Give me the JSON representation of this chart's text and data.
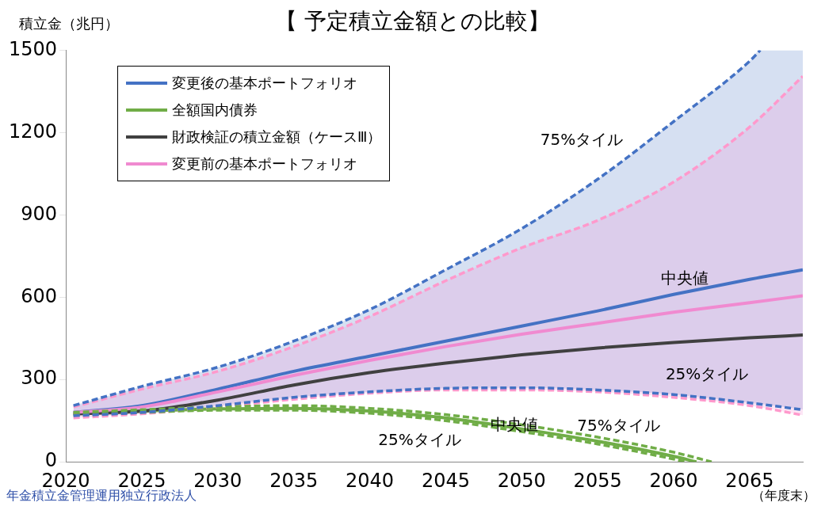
{
  "chart_data": {
    "type": "line",
    "title": "【 予定積立金額との比較】",
    "ylabel": "積立金（兆円）",
    "xlabel": "（年度末）",
    "xlim": [
      2020,
      2068.5
    ],
    "xticks": [
      2020,
      2025,
      2030,
      2035,
      2040,
      2045,
      2050,
      2055,
      2060,
      2065
    ],
    "ylim": [
      0,
      1500
    ],
    "yticks": [
      0,
      300,
      600,
      900,
      1200,
      1500
    ],
    "grid": false,
    "legend": "top left",
    "marker": "none",
    "series": [
      {
        "name": "変更後の基本ポートフォリオ",
        "color": "#4472c4",
        "x": [
          2020.5,
          2025,
          2030,
          2035,
          2040,
          2045,
          2050,
          2055,
          2060,
          2065,
          2065.7,
          2068.5
        ],
        "values": [
          180,
          205,
          265,
          330,
          385,
          440,
          495,
          550,
          610,
          665,
          672,
          700
        ],
        "upper": [
          205,
          275,
          345,
          440,
          555,
          700,
          850,
          1030,
          1240,
          1460,
          1500,
          1500
        ],
        "lower": [
          168,
          180,
          205,
          235,
          255,
          268,
          270,
          262,
          245,
          215,
          211,
          190
        ]
      },
      {
        "color": "#4472c4",
        "line_style": "dashed",
        "x": [
          2020.5,
          2025,
          2030,
          2035,
          2040,
          2045,
          2050,
          2055,
          2060,
          2065,
          2065.7
        ],
        "values": [
          205,
          275,
          345,
          440,
          555,
          700,
          850,
          1030,
          1240,
          1460,
          1500
        ]
      },
      {
        "color": "#4472c4",
        "line_style": "dashed",
        "x": [
          2020.5,
          2025,
          2030,
          2035,
          2040,
          2045,
          2050,
          2055,
          2060,
          2065,
          2068.5
        ],
        "values": [
          168,
          180,
          205,
          235,
          255,
          268,
          270,
          262,
          245,
          215,
          190
        ]
      },
      {
        "name": "全額国内債券",
        "color": "#70ad47",
        "x": [
          2020.5,
          2025,
          2030,
          2035,
          2040,
          2045,
          2050,
          2055,
          2060,
          2061.5
        ],
        "values": [
          175,
          185,
          193,
          195,
          185,
          160,
          120,
          75,
          20,
          0
        ]
      },
      {
        "color": "#70ad47",
        "line_style": "dashed",
        "x": [
          2020.5,
          2025,
          2030,
          2035,
          2040,
          2045,
          2050,
          2055,
          2060,
          2062.5
        ],
        "values": [
          180,
          190,
          200,
          205,
          195,
          172,
          135,
          90,
          35,
          0
        ]
      },
      {
        "color": "#70ad47",
        "line_style": "dashed",
        "x": [
          2020.5,
          2025,
          2030,
          2035,
          2040,
          2045,
          2050,
          2055,
          2060,
          2060.8
        ],
        "values": [
          170,
          180,
          188,
          188,
          177,
          150,
          110,
          65,
          10,
          0
        ]
      },
      {
        "name": "財政検証の積立金額（ケースⅢ）",
        "color": "#404040",
        "x": [
          2020.5,
          2025,
          2030,
          2035,
          2040,
          2045,
          2050,
          2055,
          2060,
          2065,
          2068.5
        ],
        "values": [
          175,
          185,
          225,
          280,
          325,
          360,
          390,
          415,
          435,
          452,
          462
        ]
      },
      {
        "name": "変更前の基本ポートフォリオ",
        "color": "#f08ad0",
        "x": [
          2020.5,
          2025,
          2030,
          2035,
          2040,
          2045,
          2050,
          2055,
          2060,
          2065,
          2068.5
        ],
        "values": [
          180,
          200,
          255,
          315,
          370,
          420,
          465,
          505,
          545,
          580,
          605
        ],
        "upper": [
          200,
          265,
          330,
          420,
          530,
          660,
          780,
          880,
          1020,
          1220,
          1405
        ],
        "lower": [
          160,
          175,
          200,
          228,
          250,
          262,
          262,
          255,
          235,
          205,
          170
        ]
      },
      {
        "color": "#ff99cc",
        "line_style": "dashed",
        "x": [
          2020.5,
          2025,
          2030,
          2035,
          2040,
          2045,
          2050,
          2055,
          2060,
          2065,
          2068.5
        ],
        "values": [
          200,
          265,
          330,
          420,
          530,
          660,
          780,
          880,
          1020,
          1220,
          1405
        ]
      },
      {
        "color": "#ff99cc",
        "line_style": "dashed",
        "x": [
          2020.5,
          2025,
          2030,
          2035,
          2040,
          2045,
          2050,
          2055,
          2060,
          2065,
          2068.5
        ],
        "values": [
          160,
          175,
          200,
          228,
          250,
          262,
          262,
          255,
          235,
          205,
          170
        ]
      }
    ],
    "annotations": [
      "75%タイル",
      "中央値",
      "25%タイル",
      "25%タイル",
      {
        "text": "中央値",
        "x": 2049.5,
        "y": 131
      },
      "75%タイル",
      "年金積立金管理運用独立行政法人"
    ]
  }
}
